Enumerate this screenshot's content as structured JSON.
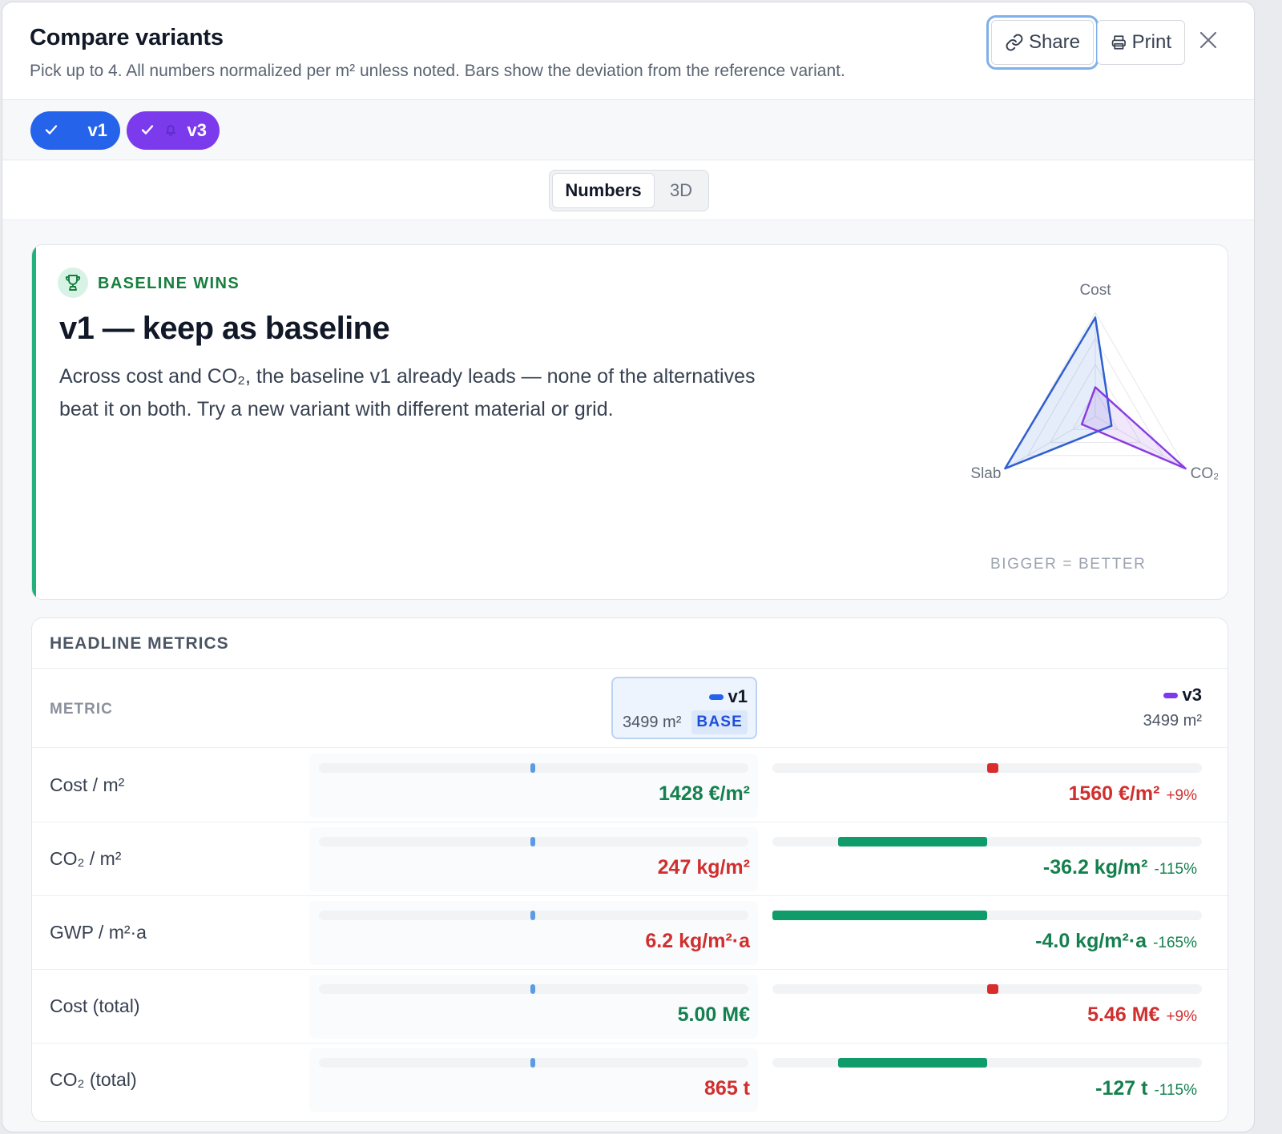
{
  "header": {
    "title": "Compare variants",
    "subtitle": "Pick up to 4. All numbers normalized per m² unless noted. Bars show the deviation from the reference variant.",
    "share_label": "Share",
    "print_label": "Print"
  },
  "chips": [
    {
      "label": "v1",
      "color": "#2563eb"
    },
    {
      "label": "v3",
      "color": "#7c3aed"
    }
  ],
  "tabs": [
    {
      "label": "Numbers",
      "active": true
    },
    {
      "label": "3D",
      "active": false
    }
  ],
  "recommendation": {
    "tag": "BASELINE WINS",
    "title": "v1 — keep as baseline",
    "body": "Across cost and CO₂, the baseline v1 already leads — none of the alternatives beat it on both. Try a new variant with different material or grid.",
    "radar_axes": [
      "Cost",
      "CO₂",
      "Slab"
    ],
    "radar_note": "BIGGER = BETTER",
    "radar_levels": {
      "v1": [
        0.95,
        0.18,
        1.0
      ],
      "v3": [
        0.28,
        1.0,
        0.15
      ]
    },
    "accent_color": "#22b07d"
  },
  "metrics": {
    "title": "HEADLINE METRICS",
    "column_header": "METRIC",
    "variants": [
      {
        "name": "v1",
        "area": "3499 m²",
        "badge": "BASE",
        "color": "#2563eb"
      },
      {
        "name": "v3",
        "area": "3499 m²",
        "color": "#7c3aed"
      }
    ],
    "rows": [
      {
        "label": "Cost / m²",
        "v1": "1428 €/m²",
        "v3": "1560 €/m²",
        "v3_pct": "+9%"
      },
      {
        "label": "CO₂ / m²",
        "v1": "247 kg/m²",
        "v3": "-36.2 kg/m²",
        "v3_pct": "-115%"
      },
      {
        "label": "GWP / m²·a",
        "v1": "6.2 kg/m²·a",
        "v3": "-4.0 kg/m²·a",
        "v3_pct": "-165%"
      },
      {
        "label": "Cost (total)",
        "v1": "5.00 M€",
        "v3": "5.46 M€",
        "v3_pct": "+9%"
      },
      {
        "label": "CO₂ (total)",
        "v1": "865 t",
        "v3": "-127 t",
        "v3_pct": "-115%"
      }
    ]
  }
}
